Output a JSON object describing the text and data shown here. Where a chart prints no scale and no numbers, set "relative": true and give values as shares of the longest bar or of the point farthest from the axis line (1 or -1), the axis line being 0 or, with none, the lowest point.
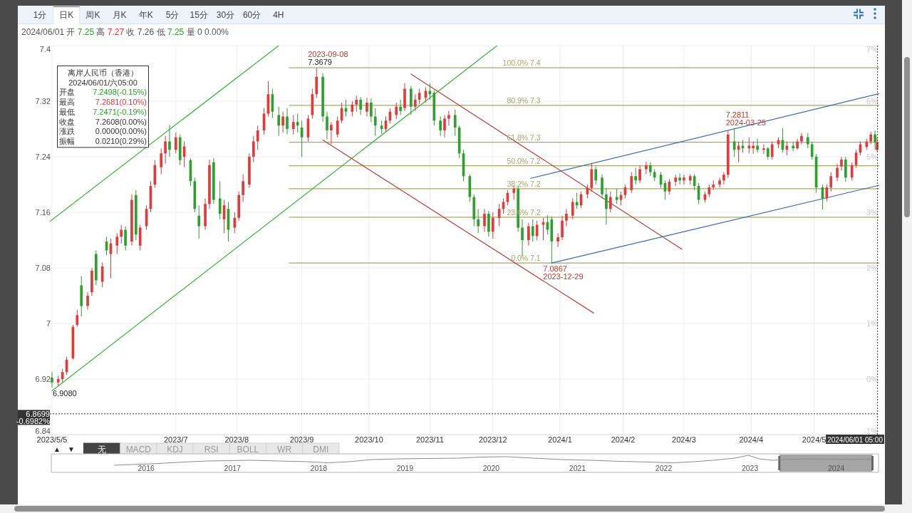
{
  "chart_data": [
    {
      "type": "other",
      "annotations": [
        "1分",
        "日K",
        "周K",
        "月K",
        "年K",
        "5分",
        "15分",
        "30分",
        "60分",
        "4H"
      ]
    },
    {
      "type": "candlestick",
      "title": "离岸人民币（香港）",
      "subtitle": "2024/06/01 开 7.25 高 7.27 收 7.26 低 7.25 量 0 0.00%",
      "x": [
        "2023-05-05",
        "2023-05-08",
        "2023-05-10",
        "2023-05-12",
        "2023-05-15",
        "2023-05-17",
        "2023-05-19",
        "2023-05-22",
        "2023-05-24",
        "2023-05-26",
        "2023-05-29",
        "2023-05-31",
        "2023-06-02",
        "2023-06-05",
        "2023-06-07",
        "2023-06-09",
        "2023-06-12",
        "2023-06-14",
        "2023-06-16",
        "2023-06-19",
        "2023-06-21",
        "2023-06-23",
        "2023-06-26",
        "2023-06-28",
        "2023-06-30",
        "2023-07-03",
        "2023-07-05",
        "2023-07-07",
        "2023-07-10",
        "2023-07-12",
        "2023-07-14",
        "2023-07-17",
        "2023-07-19",
        "2023-07-21",
        "2023-07-24",
        "2023-07-26",
        "2023-07-28",
        "2023-07-31",
        "2023-08-02",
        "2023-08-04",
        "2023-08-07",
        "2023-08-09",
        "2023-08-11",
        "2023-08-14",
        "2023-08-16",
        "2023-08-18",
        "2023-08-21",
        "2023-08-23",
        "2023-08-25",
        "2023-08-28",
        "2023-08-30",
        "2023-09-01",
        "2023-09-04",
        "2023-09-06",
        "2023-09-08",
        "2023-09-11",
        "2023-09-13",
        "2023-09-15",
        "2023-09-18",
        "2023-09-20",
        "2023-09-22",
        "2023-09-25",
        "2023-09-27",
        "2023-09-29",
        "2023-10-02",
        "2023-10-04",
        "2023-10-06",
        "2023-10-09",
        "2023-10-11",
        "2023-10-13",
        "2023-10-16",
        "2023-10-18",
        "2023-10-20",
        "2023-10-23",
        "2023-10-25",
        "2023-10-27",
        "2023-10-30",
        "2023-11-01",
        "2023-11-03",
        "2023-11-06",
        "2023-11-08",
        "2023-11-10",
        "2023-11-13",
        "2023-11-15",
        "2023-11-17",
        "2023-11-20",
        "2023-11-22",
        "2023-11-24",
        "2023-11-27",
        "2023-11-29",
        "2023-12-01",
        "2023-12-04",
        "2023-12-06",
        "2023-12-08",
        "2023-12-11",
        "2023-12-13",
        "2023-12-15",
        "2023-12-18",
        "2023-12-20",
        "2023-12-22",
        "2023-12-25",
        "2023-12-27",
        "2023-12-29",
        "2024-01-01",
        "2024-01-03",
        "2024-01-05",
        "2024-01-08",
        "2024-01-10",
        "2024-01-12",
        "2024-01-15",
        "2024-01-17",
        "2024-01-19",
        "2024-01-22",
        "2024-01-24",
        "2024-01-26",
        "2024-01-29",
        "2024-01-31",
        "2024-02-02",
        "2024-02-05",
        "2024-02-07",
        "2024-02-09",
        "2024-02-12",
        "2024-02-14",
        "2024-02-16",
        "2024-02-19",
        "2024-02-21",
        "2024-02-23",
        "2024-02-26",
        "2024-02-28",
        "2024-03-01",
        "2024-03-04",
        "2024-03-06",
        "2024-03-08",
        "2024-03-11",
        "2024-03-13",
        "2024-03-15",
        "2024-03-18",
        "2024-03-20",
        "2024-03-22",
        "2024-03-25",
        "2024-03-27",
        "2024-03-29",
        "2024-04-01",
        "2024-04-03",
        "2024-04-05",
        "2024-04-08",
        "2024-04-10",
        "2024-04-12",
        "2024-04-15",
        "2024-04-17",
        "2024-04-19",
        "2024-04-22",
        "2024-04-24",
        "2024-04-26",
        "2024-04-29",
        "2024-05-01",
        "2024-05-03",
        "2024-05-06",
        "2024-05-08",
        "2024-05-10",
        "2024-05-13",
        "2024-05-15",
        "2024-05-17",
        "2024-05-20",
        "2024-05-22",
        "2024-05-24",
        "2024-05-27",
        "2024-05-29",
        "2024-05-31",
        "2024-06-01"
      ],
      "ohlc": [
        [
          6.922,
          6.93,
          6.908,
          6.915
        ],
        [
          6.915,
          6.925,
          6.91,
          6.92
        ],
        [
          6.92,
          6.935,
          6.915,
          6.93
        ],
        [
          6.93,
          6.952,
          6.926,
          6.948
        ],
        [
          6.95,
          6.998,
          6.948,
          6.995
        ],
        [
          6.998,
          7.02,
          6.995,
          7.012
        ],
        [
          7.055,
          7.068,
          7.01,
          7.025
        ],
        [
          7.025,
          7.045,
          7.02,
          7.04
        ],
        [
          7.045,
          7.08,
          7.04,
          7.076
        ],
        [
          7.1,
          7.105,
          7.055,
          7.062
        ],
        [
          7.06,
          7.088,
          7.052,
          7.082
        ],
        [
          7.118,
          7.125,
          7.098,
          7.105
        ],
        [
          7.1,
          7.122,
          7.065,
          7.115
        ],
        [
          7.112,
          7.13,
          7.1,
          7.125
        ],
        [
          7.125,
          7.142,
          7.115,
          7.135
        ],
        [
          7.135,
          7.14,
          7.105,
          7.112
        ],
        [
          7.118,
          7.186,
          7.112,
          7.178
        ],
        [
          7.185,
          7.192,
          7.12,
          7.128
        ],
        [
          7.112,
          7.142,
          7.105,
          7.138
        ],
        [
          7.14,
          7.17,
          7.135,
          7.165
        ],
        [
          7.165,
          7.205,
          7.16,
          7.198
        ],
        [
          7.2,
          7.235,
          7.195,
          7.228
        ],
        [
          7.225,
          7.252,
          7.215,
          7.245
        ],
        [
          7.245,
          7.27,
          7.23,
          7.262
        ],
        [
          7.262,
          7.286,
          7.24,
          7.25
        ],
        [
          7.25,
          7.275,
          7.245,
          7.268
        ],
        [
          7.268,
          7.272,
          7.228,
          7.235
        ],
        [
          7.24,
          7.262,
          7.225,
          7.255
        ],
        [
          7.235,
          7.238,
          7.198,
          7.205
        ],
        [
          7.205,
          7.21,
          7.16,
          7.165
        ],
        [
          7.155,
          7.17,
          7.122,
          7.14
        ],
        [
          7.14,
          7.18,
          7.135,
          7.172
        ],
        [
          7.172,
          7.236,
          7.165,
          7.228
        ],
        [
          7.232,
          7.238,
          7.172,
          7.178
        ],
        [
          7.18,
          7.205,
          7.15,
          7.158
        ],
        [
          7.15,
          7.178,
          7.13,
          7.17
        ],
        [
          7.165,
          7.175,
          7.118,
          7.135
        ],
        [
          7.138,
          7.16,
          7.13,
          7.152
        ],
        [
          7.152,
          7.19,
          7.148,
          7.185
        ],
        [
          7.185,
          7.215,
          7.175,
          7.205
        ],
        [
          7.2,
          7.245,
          7.195,
          7.24
        ],
        [
          7.24,
          7.27,
          7.232,
          7.262
        ],
        [
          7.262,
          7.285,
          7.25,
          7.278
        ],
        [
          7.278,
          7.31,
          7.272,
          7.302
        ],
        [
          7.302,
          7.349,
          7.298,
          7.33
        ],
        [
          7.33,
          7.338,
          7.296,
          7.305
        ],
        [
          7.3,
          7.312,
          7.27,
          7.285
        ],
        [
          7.285,
          7.305,
          7.275,
          7.298
        ],
        [
          7.298,
          7.31,
          7.272,
          7.28
        ],
        [
          7.28,
          7.3,
          7.272,
          7.29
        ],
        [
          7.29,
          7.302,
          7.275,
          7.285
        ],
        [
          7.282,
          7.292,
          7.24,
          7.268
        ],
        [
          7.268,
          7.3,
          7.262,
          7.295
        ],
        [
          7.3,
          7.338,
          7.295,
          7.33
        ],
        [
          7.33,
          7.3679,
          7.325,
          7.355
        ],
        [
          7.355,
          7.36,
          7.29,
          7.298
        ],
        [
          7.298,
          7.305,
          7.265,
          7.278
        ],
        [
          7.278,
          7.29,
          7.258,
          7.286
        ],
        [
          7.272,
          7.298,
          7.268,
          7.292
        ],
        [
          7.292,
          7.318,
          7.288,
          7.31
        ],
        [
          7.31,
          7.322,
          7.298,
          7.305
        ],
        [
          7.305,
          7.32,
          7.298,
          7.315
        ],
        [
          7.315,
          7.328,
          7.305,
          7.322
        ],
        [
          7.322,
          7.326,
          7.3,
          7.308
        ],
        [
          7.305,
          7.325,
          7.298,
          7.318
        ],
        [
          7.318,
          7.324,
          7.29,
          7.298
        ],
        [
          7.298,
          7.31,
          7.27,
          7.285
        ],
        [
          7.285,
          7.292,
          7.273,
          7.28
        ],
        [
          7.28,
          7.298,
          7.276,
          7.292
        ],
        [
          7.292,
          7.31,
          7.288,
          7.305
        ],
        [
          7.3,
          7.318,
          7.294,
          7.312
        ],
        [
          7.312,
          7.322,
          7.3,
          7.306
        ],
        [
          7.31,
          7.346,
          7.306,
          7.338
        ],
        [
          7.338,
          7.342,
          7.3,
          7.312
        ],
        [
          7.312,
          7.33,
          7.306,
          7.322
        ],
        [
          7.322,
          7.338,
          7.316,
          7.332
        ],
        [
          7.325,
          7.34,
          7.318,
          7.335
        ],
        [
          7.335,
          7.346,
          7.322,
          7.33
        ],
        [
          7.332,
          7.336,
          7.285,
          7.292
        ],
        [
          7.292,
          7.298,
          7.27,
          7.278
        ],
        [
          7.278,
          7.3,
          7.268,
          7.295
        ],
        [
          7.295,
          7.306,
          7.285,
          7.3
        ],
        [
          7.3,
          7.308,
          7.27,
          7.282
        ],
        [
          7.282,
          7.285,
          7.238,
          7.245
        ],
        [
          7.245,
          7.25,
          7.205,
          7.212
        ],
        [
          7.212,
          7.215,
          7.175,
          7.182
        ],
        [
          7.182,
          7.186,
          7.14,
          7.15
        ],
        [
          7.15,
          7.165,
          7.13,
          7.14
        ],
        [
          7.14,
          7.165,
          7.132,
          7.158
        ],
        [
          7.158,
          7.162,
          7.125,
          7.132
        ],
        [
          7.132,
          7.16,
          7.122,
          7.152
        ],
        [
          7.152,
          7.172,
          7.14,
          7.165
        ],
        [
          7.165,
          7.18,
          7.158,
          7.175
        ],
        [
          7.175,
          7.192,
          7.17,
          7.188
        ],
        [
          7.188,
          7.199,
          7.178,
          7.194
        ],
        [
          7.194,
          7.198,
          7.132,
          7.138
        ],
        [
          7.138,
          7.15,
          7.097,
          7.12
        ],
        [
          7.12,
          7.145,
          7.112,
          7.14
        ],
        [
          7.14,
          7.15,
          7.118,
          7.126
        ],
        [
          7.126,
          7.148,
          7.12,
          7.142
        ],
        [
          7.142,
          7.152,
          7.12,
          7.146
        ],
        [
          7.146,
          7.156,
          7.128,
          7.135
        ],
        [
          7.15,
          7.154,
          7.0867,
          7.118
        ],
        [
          7.118,
          7.13,
          7.11,
          7.124
        ],
        [
          7.124,
          7.155,
          7.12,
          7.148
        ],
        [
          7.148,
          7.165,
          7.14,
          7.158
        ],
        [
          7.155,
          7.18,
          7.15,
          7.175
        ],
        [
          7.175,
          7.188,
          7.165,
          7.17
        ],
        [
          7.17,
          7.19,
          7.166,
          7.186
        ],
        [
          7.186,
          7.2,
          7.18,
          7.195
        ],
        [
          7.195,
          7.231,
          7.19,
          7.222
        ],
        [
          7.222,
          7.226,
          7.2,
          7.206
        ],
        [
          7.21,
          7.215,
          7.18,
          7.186
        ],
        [
          7.186,
          7.195,
          7.142,
          7.165
        ],
        [
          7.165,
          7.19,
          7.16,
          7.182
        ],
        [
          7.182,
          7.194,
          7.172,
          7.178
        ],
        [
          7.178,
          7.19,
          7.17,
          7.185
        ],
        [
          7.185,
          7.2,
          7.18,
          7.196
        ],
        [
          7.192,
          7.218,
          7.188,
          7.212
        ],
        [
          7.212,
          7.224,
          7.2,
          7.206
        ],
        [
          7.206,
          7.228,
          7.202,
          7.222
        ],
        [
          7.222,
          7.233,
          7.215,
          7.228
        ],
        [
          7.228,
          7.232,
          7.212,
          7.218
        ],
        [
          7.218,
          7.222,
          7.205,
          7.21
        ],
        [
          7.214,
          7.218,
          7.195,
          7.2
        ],
        [
          7.202,
          7.206,
          7.178,
          7.19
        ],
        [
          7.19,
          7.208,
          7.186,
          7.204
        ],
        [
          7.204,
          7.214,
          7.198,
          7.21
        ],
        [
          7.21,
          7.216,
          7.2,
          7.206
        ],
        [
          7.206,
          7.214,
          7.2,
          7.21
        ],
        [
          7.206,
          7.215,
          7.2,
          7.212
        ],
        [
          7.212,
          7.215,
          7.192,
          7.198
        ],
        [
          7.198,
          7.202,
          7.172,
          7.178
        ],
        [
          7.178,
          7.19,
          7.174,
          7.186
        ],
        [
          7.186,
          7.2,
          7.182,
          7.196
        ],
        [
          7.196,
          7.206,
          7.192,
          7.2
        ],
        [
          7.2,
          7.21,
          7.196,
          7.206
        ],
        [
          7.206,
          7.218,
          7.2,
          7.214
        ],
        [
          7.214,
          7.278,
          7.21,
          7.272
        ],
        [
          7.262,
          7.2811,
          7.24,
          7.25
        ],
        [
          7.25,
          7.262,
          7.232,
          7.256
        ],
        [
          7.256,
          7.264,
          7.246,
          7.252
        ],
        [
          7.252,
          7.268,
          7.245,
          7.256
        ],
        [
          7.252,
          7.262,
          7.244,
          7.256
        ],
        [
          7.256,
          7.266,
          7.246,
          7.25
        ],
        [
          7.25,
          7.258,
          7.244,
          7.252
        ],
        [
          7.252,
          7.254,
          7.236,
          7.24
        ],
        [
          7.24,
          7.262,
          7.236,
          7.258
        ],
        [
          7.258,
          7.268,
          7.252,
          7.264
        ],
        [
          7.264,
          7.281,
          7.246,
          7.25
        ],
        [
          7.25,
          7.262,
          7.242,
          7.256
        ],
        [
          7.256,
          7.262,
          7.248,
          7.252
        ],
        [
          7.252,
          7.266,
          7.25,
          7.262
        ],
        [
          7.262,
          7.274,
          7.258,
          7.27
        ],
        [
          7.268,
          7.274,
          7.252,
          7.258
        ],
        [
          7.258,
          7.262,
          7.236,
          7.24
        ],
        [
          7.24,
          7.244,
          7.188,
          7.196
        ],
        [
          7.196,
          7.2,
          7.164,
          7.18
        ],
        [
          7.18,
          7.2,
          7.176,
          7.196
        ],
        [
          7.196,
          7.218,
          7.19,
          7.212
        ],
        [
          7.21,
          7.23,
          7.205,
          7.224
        ],
        [
          7.226,
          7.24,
          7.22,
          7.236
        ],
        [
          7.236,
          7.24,
          7.204,
          7.21
        ],
        [
          7.21,
          7.232,
          7.206,
          7.228
        ],
        [
          7.228,
          7.25,
          7.224,
          7.246
        ],
        [
          7.246,
          7.262,
          7.242,
          7.258
        ],
        [
          7.254,
          7.266,
          7.25,
          7.262
        ],
        [
          7.262,
          7.276,
          7.258,
          7.272
        ],
        [
          7.272,
          7.278,
          7.25,
          7.2608
        ],
        [
          7.2498,
          7.2681,
          7.2471,
          7.2608
        ]
      ],
      "colors": [
        "#2ea02e",
        "#e03a3a",
        "#e03a3a",
        "#e03a3a",
        "#e03a3a",
        "#e03a3a",
        "#2ea02e",
        "#e03a3a",
        "#e03a3a",
        "#2ea02e",
        "#e03a3a",
        "#2ea02e",
        "#e03a3a",
        "#e03a3a",
        "#e03a3a",
        "#2ea02e",
        "#e03a3a",
        "#2ea02e",
        "#e03a3a",
        "#e03a3a",
        "#e03a3a",
        "#e03a3a",
        "#e03a3a",
        "#e03a3a",
        "#2ea02e",
        "#e03a3a",
        "#2ea02e",
        "#e03a3a",
        "#2ea02e",
        "#2ea02e",
        "#2ea02e",
        "#e03a3a",
        "#e03a3a",
        "#2ea02e",
        "#2ea02e",
        "#e03a3a",
        "#2ea02e",
        "#e03a3a",
        "#e03a3a",
        "#e03a3a",
        "#e03a3a",
        "#e03a3a",
        "#e03a3a",
        "#e03a3a",
        "#e03a3a",
        "#2ea02e",
        "#2ea02e",
        "#e03a3a",
        "#2ea02e",
        "#e03a3a",
        "#2ea02e",
        "#2ea02e",
        "#e03a3a",
        "#e03a3a",
        "#e03a3a",
        "#2ea02e",
        "#2ea02e",
        "#e03a3a",
        "#e03a3a",
        "#e03a3a",
        "#2ea02e",
        "#e03a3a",
        "#e03a3a",
        "#2ea02e",
        "#e03a3a",
        "#2ea02e",
        "#2ea02e",
        "#2ea02e",
        "#e03a3a",
        "#e03a3a",
        "#e03a3a",
        "#2ea02e",
        "#e03a3a",
        "#2ea02e",
        "#e03a3a",
        "#e03a3a",
        "#e03a3a",
        "#2ea02e",
        "#2ea02e",
        "#2ea02e",
        "#e03a3a",
        "#e03a3a",
        "#2ea02e",
        "#2ea02e",
        "#2ea02e",
        "#2ea02e",
        "#2ea02e",
        "#2ea02e",
        "#e03a3a",
        "#2ea02e",
        "#e03a3a",
        "#e03a3a",
        "#e03a3a",
        "#e03a3a",
        "#e03a3a",
        "#2ea02e",
        "#2ea02e",
        "#e03a3a",
        "#2ea02e",
        "#e03a3a",
        "#e03a3a",
        "#2ea02e",
        "#2ea02e",
        "#e03a3a",
        "#e03a3a",
        "#e03a3a",
        "#e03a3a",
        "#2ea02e",
        "#e03a3a",
        "#e03a3a",
        "#e03a3a",
        "#2ea02e",
        "#2ea02e",
        "#2ea02e",
        "#e03a3a",
        "#2ea02e",
        "#e03a3a",
        "#e03a3a",
        "#e03a3a",
        "#2ea02e",
        "#e03a3a",
        "#e03a3a",
        "#2ea02e",
        "#2ea02e",
        "#2ea02e",
        "#2ea02e",
        "#e03a3a",
        "#e03a3a",
        "#2ea02e",
        "#e03a3a",
        "#e03a3a",
        "#2ea02e",
        "#2ea02e",
        "#e03a3a",
        "#e03a3a",
        "#e03a3a",
        "#e03a3a",
        "#e03a3a",
        "#e03a3a",
        "#2ea02e",
        "#e03a3a",
        "#2ea02e",
        "#e03a3a",
        "#e03a3a",
        "#2ea02e",
        "#e03a3a",
        "#2ea02e",
        "#e03a3a",
        "#e03a3a",
        "#2ea02e",
        "#e03a3a",
        "#2ea02e",
        "#e03a3a",
        "#e03a3a",
        "#2ea02e",
        "#2ea02e",
        "#2ea02e",
        "#2ea02e",
        "#e03a3a",
        "#e03a3a",
        "#e03a3a",
        "#e03a3a",
        "#2ea02e",
        "#e03a3a",
        "#e03a3a",
        "#e03a3a",
        "#e03a3a",
        "#e03a3a",
        "#2ea02e",
        "#e03a3a"
      ],
      "xlim": [
        "2023-05-04",
        "2024-06-02"
      ],
      "xticks": [
        {
          "value": "2023-05-05",
          "label": "2023/5/5"
        },
        {
          "value": "2023-07-03",
          "label": "2023/7"
        },
        {
          "value": "2023-08-01",
          "label": "2023/8"
        },
        {
          "value": "2023-09-01",
          "label": "2023/9"
        },
        {
          "value": "2023-10-03",
          "label": "2023/10"
        },
        {
          "value": "2023-11-01",
          "label": "2023/11"
        },
        {
          "value": "2023-12-01",
          "label": "2023/12"
        },
        {
          "value": "2024-01-02",
          "label": "2024/1"
        },
        {
          "value": "2024-02-01",
          "label": "2024/2"
        },
        {
          "value": "2024-03-01",
          "label": "2024/3"
        },
        {
          "value": "2024-04-02",
          "label": "2024/4"
        },
        {
          "value": "2024-05-02",
          "label": "2024/5"
        }
      ],
      "ylim": [
        6.84,
        7.4
      ],
      "yticks": [
        6.84,
        6.92,
        7,
        7.08,
        7.16,
        7.24,
        7.32,
        7.4
      ],
      "y2lim": [
        -1.13,
        6.96
      ],
      "y2ticks": [
        {
          "value": -1.13,
          "label": "-1%"
        },
        {
          "value": 0.03,
          "label": "0%"
        },
        {
          "value": 1.18,
          "label": "1%"
        },
        {
          "value": 2.34,
          "label": "2%"
        },
        {
          "value": 3.5,
          "label": "3%"
        },
        {
          "value": 4.65,
          "label": "5%"
        },
        {
          "value": 5.81,
          "label": "6%"
        },
        {
          "value": 6.96,
          "label": "7%"
        }
      ],
      "grid": true,
      "series": [
        {
          "type": "line",
          "name": "100.0% 7.4",
          "color": "#a6a66e",
          "x": [
            "2023-08-26",
            "2024-06-02"
          ],
          "values": [
            7.368,
            7.368
          ]
        },
        {
          "type": "line",
          "name": "80.9% 7.3",
          "color": "#a6a66e",
          "x": [
            "2023-08-26",
            "2024-06-02"
          ],
          "values": [
            7.314,
            7.314
          ]
        },
        {
          "type": "line",
          "name": "61.8% 7.3",
          "color": "#a6a66e",
          "x": [
            "2023-08-26",
            "2024-06-02"
          ],
          "values": [
            7.261,
            7.261
          ]
        },
        {
          "type": "line",
          "name": "50.0% 7.2",
          "color": "#a6a66e",
          "x": [
            "2023-08-26",
            "2024-06-02"
          ],
          "values": [
            7.227,
            7.227
          ]
        },
        {
          "type": "line",
          "name": "38.2% 7.2",
          "color": "#a6a66e",
          "x": [
            "2023-08-26",
            "2024-06-02"
          ],
          "values": [
            7.194,
            7.194
          ]
        },
        {
          "type": "line",
          "name": "23.6% 7.2",
          "color": "#a6a66e",
          "x": [
            "2023-08-26",
            "2024-06-02"
          ],
          "values": [
            7.153,
            7.153
          ]
        },
        {
          "type": "line",
          "name": "0.0% 7.1",
          "color": "#a6a66e",
          "x": [
            "2023-08-26",
            "2024-06-02"
          ],
          "values": [
            7.087,
            7.087
          ]
        },
        {
          "type": "line",
          "color": "#3cb43c",
          "x": [
            "2023-05-04",
            "2023-08-21"
          ],
          "values": [
            7.147,
            7.4
          ]
        },
        {
          "type": "line",
          "color": "#3cb43c",
          "x": [
            "2023-05-05",
            "2023-12-03"
          ],
          "values": [
            6.903,
            7.4
          ]
        },
        {
          "type": "line",
          "color": "#b8423c",
          "x": [
            "2023-10-23",
            "2024-02-29"
          ],
          "values": [
            7.359,
            7.107
          ]
        },
        {
          "type": "line",
          "color": "#b8423c",
          "x": [
            "2023-09-11",
            "2024-01-18"
          ],
          "values": [
            7.264,
            7.015
          ]
        },
        {
          "type": "line",
          "color": "#3d6ea8",
          "x": [
            "2023-12-19",
            "2024-06-02"
          ],
          "values": [
            7.209,
            7.331
          ]
        },
        {
          "type": "line",
          "color": "#3d6ea8",
          "x": [
            "2023-12-29",
            "2024-06-02"
          ],
          "values": [
            7.087,
            7.199
          ]
        }
      ],
      "annotations": [
        "2024/06/01/六05:00",
        "开盘 7.2498(-0.15%)",
        "最高 7.2681(0.10%)",
        "最低 7.2471(-0.19%)",
        "收盘 7.2608(0.00%)",
        "涨跌 0.0000(0.00%)",
        "振幅 0.0210(0.29%)",
        {
          "text": "7.3679",
          "x": "2023-09-08",
          "y": 7.3679
        },
        {
          "text": "2023-09-08",
          "x": "2023-09-08",
          "y": 7.3679
        },
        {
          "text": "2024-03-25",
          "x": "2024-03-25",
          "y": 7.2811
        },
        {
          "text": "7.2811",
          "x": "2024-03-25",
          "y": 7.2811
        },
        {
          "text": "7.0867",
          "x": "2023-12-29",
          "y": 7.0867
        },
        {
          "text": "2023-12-29",
          "x": "2023-12-29",
          "y": 7.0867
        },
        {
          "text": "6.9080",
          "x": "2023-05-05",
          "y": 6.908
        }
      ],
      "ref_lines": [
        {
          "axis": "x",
          "value": "2024-06-01T05:00",
          "label": "2024/06/01 05:00",
          "line_style": "dotted",
          "color": "#333333"
        },
        {
          "axis": "y",
          "value": 6.8699,
          "label": "6.8699\n-0.6982%",
          "line_style": "dotted",
          "color": "#333333"
        }
      ]
    },
    {
      "type": "other",
      "annotations": [
        "▲",
        "▼",
        "无",
        "MACD",
        "KDJ",
        "RSI",
        "BOLL",
        "WR",
        "DMI"
      ]
    },
    {
      "type": "line",
      "relative": true,
      "x": [
        2015.63,
        2015.83,
        2016.06,
        2016.37,
        2016.7,
        2016.93,
        2017.2,
        2017.53,
        2017.86,
        2018.11,
        2018.36,
        2018.61,
        2018.93,
        2019.26,
        2019.6,
        2019.88,
        2020.17,
        2020.5,
        2020.83,
        2021.16,
        2021.5,
        2021.83,
        2022.12,
        2022.36,
        2022.57,
        2022.82,
        2022.98,
        2023.11,
        2023.27,
        2023.4,
        2023.64,
        2023.89,
        2024.14,
        2024.41
      ],
      "series": [
        {
          "color": "#8c8c8c",
          "values": [
            0,
            0.07,
            0.14,
            0.29,
            0.43,
            0.46,
            0.5,
            0.43,
            0.36,
            0.25,
            0.36,
            0.57,
            0.64,
            0.68,
            0.71,
            0.82,
            0.86,
            0.71,
            0.57,
            0.5,
            0.39,
            0.32,
            0.25,
            0.36,
            0.5,
            0.71,
            1,
            0.64,
            0.5,
            0.57,
            0.64,
            0.61,
            0.57,
            0.64
          ]
        }
      ],
      "xlim": [
        2014.9,
        2024.49
      ],
      "xticks": [
        2016,
        2017,
        2018,
        2019,
        2020,
        2021,
        2022,
        2023,
        2024
      ],
      "bands": [
        {
          "axis": "x",
          "from": 2023.34,
          "to": 2024.42,
          "color": "#9b9b9b"
        }
      ]
    }
  ]
}
